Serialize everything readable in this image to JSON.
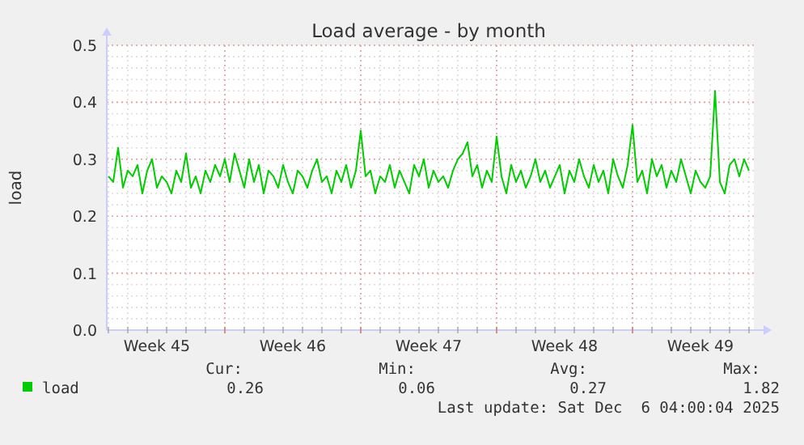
{
  "chart_data": {
    "type": "line",
    "title": "Load average - by month",
    "ylabel": "load",
    "x": [
      "2025-11-04T00:00",
      "2025-11-04T06:00",
      "2025-11-04T12:00",
      "2025-11-04T18:00",
      "2025-11-05T00:00",
      "2025-11-05T06:00",
      "2025-11-05T12:00",
      "2025-11-05T18:00",
      "2025-11-06T00:00",
      "2025-11-06T06:00",
      "2025-11-06T12:00",
      "2025-11-06T18:00",
      "2025-11-07T00:00",
      "2025-11-07T06:00",
      "2025-11-07T12:00",
      "2025-11-07T18:00",
      "2025-11-08T00:00",
      "2025-11-08T06:00",
      "2025-11-08T12:00",
      "2025-11-08T18:00",
      "2025-11-09T00:00",
      "2025-11-09T06:00",
      "2025-11-09T12:00",
      "2025-11-09T18:00",
      "2025-11-10T00:00",
      "2025-11-10T06:00",
      "2025-11-10T12:00",
      "2025-11-10T18:00",
      "2025-11-11T00:00",
      "2025-11-11T06:00",
      "2025-11-11T12:00",
      "2025-11-11T18:00",
      "2025-11-12T00:00",
      "2025-11-12T06:00",
      "2025-11-12T12:00",
      "2025-11-12T18:00",
      "2025-11-13T00:00",
      "2025-11-13T06:00",
      "2025-11-13T12:00",
      "2025-11-13T18:00",
      "2025-11-14T00:00",
      "2025-11-14T06:00",
      "2025-11-14T12:00",
      "2025-11-14T18:00",
      "2025-11-15T00:00",
      "2025-11-15T06:00",
      "2025-11-15T12:00",
      "2025-11-15T18:00",
      "2025-11-16T00:00",
      "2025-11-16T06:00",
      "2025-11-16T12:00",
      "2025-11-16T18:00",
      "2025-11-17T00:00",
      "2025-11-17T06:00",
      "2025-11-17T12:00",
      "2025-11-17T18:00",
      "2025-11-18T00:00",
      "2025-11-18T06:00",
      "2025-11-18T12:00",
      "2025-11-18T18:00",
      "2025-11-19T00:00",
      "2025-11-19T06:00",
      "2025-11-19T12:00",
      "2025-11-19T18:00",
      "2025-11-20T00:00",
      "2025-11-20T06:00",
      "2025-11-20T12:00",
      "2025-11-20T18:00",
      "2025-11-21T00:00",
      "2025-11-21T06:00",
      "2025-11-21T12:00",
      "2025-11-21T18:00",
      "2025-11-22T00:00",
      "2025-11-22T06:00",
      "2025-11-22T12:00",
      "2025-11-22T18:00",
      "2025-11-23T00:00",
      "2025-11-23T06:00",
      "2025-11-23T12:00",
      "2025-11-23T18:00",
      "2025-11-24T00:00",
      "2025-11-24T06:00",
      "2025-11-24T12:00",
      "2025-11-24T18:00",
      "2025-11-25T00:00",
      "2025-11-25T06:00",
      "2025-11-25T12:00",
      "2025-11-25T18:00",
      "2025-11-26T00:00",
      "2025-11-26T06:00",
      "2025-11-26T12:00",
      "2025-11-26T18:00",
      "2025-11-27T00:00",
      "2025-11-27T06:00",
      "2025-11-27T12:00",
      "2025-11-27T18:00",
      "2025-11-28T00:00",
      "2025-11-28T06:00",
      "2025-11-28T12:00",
      "2025-11-28T18:00",
      "2025-11-29T00:00",
      "2025-11-29T06:00",
      "2025-11-29T12:00",
      "2025-11-29T18:00",
      "2025-11-30T00:00",
      "2025-11-30T06:00",
      "2025-11-30T12:00",
      "2025-11-30T18:00",
      "2025-12-01T00:00",
      "2025-12-01T06:00",
      "2025-12-01T12:00",
      "2025-12-01T18:00",
      "2025-12-02T00:00",
      "2025-12-02T06:00",
      "2025-12-02T12:00",
      "2025-12-02T18:00",
      "2025-12-03T00:00",
      "2025-12-03T06:00",
      "2025-12-03T12:00",
      "2025-12-03T18:00",
      "2025-12-04T00:00",
      "2025-12-04T06:00",
      "2025-12-04T12:00",
      "2025-12-04T18:00",
      "2025-12-05T00:00",
      "2025-12-05T06:00",
      "2025-12-05T12:00",
      "2025-12-05T18:00",
      "2025-12-06T00:00",
      "2025-12-06T06:00",
      "2025-12-06T12:00",
      "2025-12-06T18:00",
      "2025-12-07T00:00"
    ],
    "series": [
      {
        "name": "load",
        "color": "#00cc00",
        "values": [
          0.27,
          0.26,
          0.32,
          0.25,
          0.28,
          0.27,
          0.29,
          0.24,
          0.28,
          0.3,
          0.25,
          0.27,
          0.26,
          0.24,
          0.28,
          0.26,
          0.31,
          0.25,
          0.27,
          0.24,
          0.28,
          0.26,
          0.29,
          0.27,
          0.3,
          0.26,
          0.31,
          0.28,
          0.25,
          0.3,
          0.26,
          0.29,
          0.24,
          0.28,
          0.27,
          0.25,
          0.29,
          0.26,
          0.24,
          0.28,
          0.27,
          0.25,
          0.28,
          0.3,
          0.26,
          0.27,
          0.24,
          0.28,
          0.26,
          0.29,
          0.25,
          0.28,
          0.35,
          0.27,
          0.28,
          0.24,
          0.27,
          0.26,
          0.29,
          0.25,
          0.28,
          0.26,
          0.24,
          0.29,
          0.27,
          0.3,
          0.25,
          0.28,
          0.26,
          0.27,
          0.25,
          0.28,
          0.3,
          0.31,
          0.33,
          0.27,
          0.29,
          0.25,
          0.28,
          0.26,
          0.34,
          0.27,
          0.24,
          0.29,
          0.26,
          0.28,
          0.25,
          0.27,
          0.3,
          0.26,
          0.28,
          0.25,
          0.27,
          0.29,
          0.24,
          0.28,
          0.26,
          0.3,
          0.27,
          0.25,
          0.29,
          0.26,
          0.28,
          0.24,
          0.3,
          0.27,
          0.25,
          0.29,
          0.36,
          0.26,
          0.28,
          0.24,
          0.3,
          0.27,
          0.29,
          0.25,
          0.28,
          0.26,
          0.3,
          0.27,
          0.24,
          0.28,
          0.26,
          0.25,
          0.27,
          0.42,
          0.26,
          0.24,
          0.29,
          0.3,
          0.27,
          0.3,
          0.28
        ]
      }
    ],
    "xlim": [
      "2025-11-03T22:00",
      "2025-12-07T06:00"
    ],
    "xticks": [
      {
        "value": "2025-11-06T12:00",
        "label": "Week 45"
      },
      {
        "value": "2025-11-13T12:00",
        "label": "Week 46"
      },
      {
        "value": "2025-11-20T12:00",
        "label": "Week 47"
      },
      {
        "value": "2025-11-27T12:00",
        "label": "Week 48"
      },
      {
        "value": "2025-12-04T12:00",
        "label": "Week 49"
      }
    ],
    "ylim": [
      0,
      0.5
    ],
    "yticks": [
      {
        "value": 0,
        "label": "0.0"
      },
      {
        "value": 0.1,
        "label": "0.1"
      },
      {
        "value": 0.2,
        "label": "0.2"
      },
      {
        "value": 0.3,
        "label": "0.3"
      },
      {
        "value": 0.4,
        "label": "0.4"
      },
      {
        "value": 0.5,
        "label": "0.5"
      }
    ],
    "grid": true,
    "legend": "bottom left",
    "line_style": "solid",
    "annotations": [
      "Cur:",
      "Min:",
      "Avg:",
      "Max:",
      "0.26",
      "0.06",
      "0.27",
      "1.82",
      "Last update: Sat Dec  6 04:00:04 2025"
    ]
  }
}
